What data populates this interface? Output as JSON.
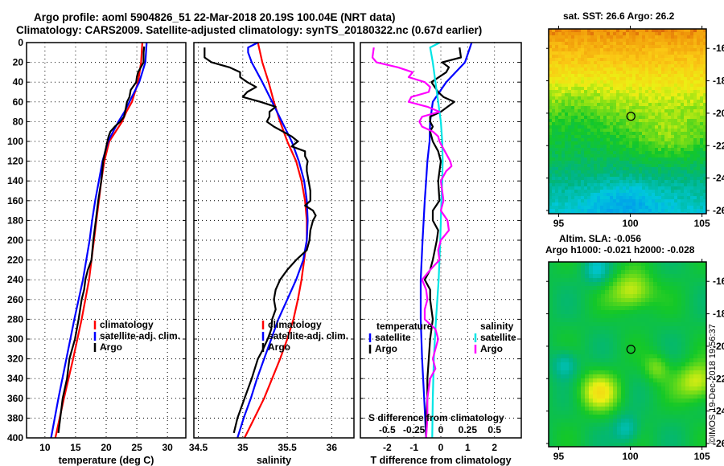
{
  "header": {
    "title_line1": "Argo profile: aoml 5904826_51 22-Mar-2018 20.19S 100.04E (NRT data)",
    "title_line2": "Climatology: CARS2009. Satellite-adjusted climatology: synTS_20180322.nc (0.67d earlier)"
  },
  "colors": {
    "climatology": "#ff0000",
    "satellite": "#0000ff",
    "argo": "#000000",
    "salinity_satellite": "#00e5e5",
    "salinity_argo": "#ff00ff"
  },
  "chart_data": [
    {
      "type": "line",
      "name": "temperature-profile",
      "xlabel": "temperature (deg C)",
      "ylabel": "",
      "xlim": [
        7,
        33
      ],
      "ylim": [
        400,
        0
      ],
      "xticks": [
        "10",
        "15",
        "20",
        "25",
        "30"
      ],
      "xtick_values": [
        10,
        15,
        20,
        25,
        30
      ],
      "yticks": [
        "0",
        "20",
        "40",
        "60",
        "80",
        "100",
        "120",
        "140",
        "160",
        "180",
        "200",
        "220",
        "240",
        "260",
        "280",
        "300",
        "320",
        "340",
        "360",
        "380",
        "400"
      ],
      "grid": true,
      "legend": [
        "climatology",
        "satellite-adj. clim.",
        "Argo"
      ],
      "legend_position": "lower-right",
      "series": [
        {
          "name": "climatology",
          "color_key": "climatology",
          "depth": [
            0,
            20,
            40,
            60,
            70,
            80,
            100,
            120,
            140,
            160,
            180,
            200,
            240,
            280,
            320,
            360,
            400
          ],
          "values": [
            25.9,
            25.7,
            25.2,
            24.2,
            23.3,
            22.6,
            20.5,
            19.7,
            19.2,
            18.8,
            18.4,
            18.0,
            17.2,
            16.0,
            14.6,
            13.1,
            11.7
          ]
        },
        {
          "name": "satellite-adj. clim.",
          "color_key": "satellite",
          "depth": [
            0,
            20,
            40,
            50,
            60,
            70,
            80,
            100,
            120,
            140,
            160,
            180,
            200,
            240,
            280,
            320,
            360,
            400
          ],
          "values": [
            26.6,
            26.4,
            25.4,
            24.6,
            23.8,
            23.0,
            22.0,
            20.3,
            19.4,
            18.8,
            18.2,
            17.7,
            17.3,
            16.2,
            14.8,
            13.5,
            12.2,
            11.0
          ]
        },
        {
          "name": "Argo",
          "color_key": "argo",
          "depth": [
            4,
            10,
            20,
            30,
            35,
            40,
            48,
            55,
            60,
            70,
            75,
            80,
            85,
            90,
            95,
            100,
            120,
            140,
            160,
            180,
            200,
            220,
            230,
            240,
            250,
            260,
            280,
            300,
            320,
            340,
            360,
            380,
            395
          ],
          "values": [
            26.2,
            26.1,
            26.1,
            25.2,
            25.0,
            24.9,
            24.0,
            23.8,
            23.4,
            23.1,
            22.9,
            22.3,
            21.4,
            20.7,
            20.4,
            20.2,
            19.5,
            19.2,
            18.7,
            18.3,
            17.9,
            17.6,
            17.0,
            16.6,
            16.4,
            16.0,
            15.5,
            14.9,
            14.0,
            13.6,
            12.9,
            12.5,
            12.2
          ]
        }
      ]
    },
    {
      "type": "line",
      "name": "salinity-profile",
      "xlabel": "salinity",
      "xlim": [
        34.45,
        36.25
      ],
      "ylim": [
        400,
        0
      ],
      "xticks": [
        "34.5",
        "35",
        "35.5",
        "36"
      ],
      "xtick_values": [
        34.5,
        35.0,
        35.5,
        36.0
      ],
      "grid": true,
      "legend": [
        "climatology",
        "satellite-adj. clim.",
        "Argo"
      ],
      "legend_position": "lower-right",
      "series": [
        {
          "name": "climatology",
          "color_key": "climatology",
          "depth": [
            0,
            20,
            40,
            60,
            80,
            100,
            120,
            140,
            160,
            180,
            200,
            220,
            240,
            260,
            280,
            300,
            320,
            340,
            360,
            380,
            400
          ],
          "values": [
            35.17,
            35.22,
            35.29,
            35.35,
            35.42,
            35.5,
            35.6,
            35.66,
            35.7,
            35.72,
            35.72,
            35.69,
            35.66,
            35.62,
            35.57,
            35.5,
            35.42,
            35.33,
            35.24,
            35.13,
            35.02
          ]
        },
        {
          "name": "satellite-adj. clim.",
          "color_key": "satellite",
          "depth": [
            0,
            5,
            10,
            20,
            40,
            60,
            80,
            100,
            120,
            140,
            160,
            180,
            200,
            220,
            240,
            260,
            280,
            300,
            320,
            340,
            360,
            380,
            400
          ],
          "values": [
            35.17,
            35.06,
            35.06,
            35.1,
            35.22,
            35.33,
            35.44,
            35.55,
            35.63,
            35.69,
            35.72,
            35.73,
            35.72,
            35.68,
            35.6,
            35.5,
            35.4,
            35.32,
            35.24,
            35.16,
            35.09,
            35.01,
            34.94
          ]
        },
        {
          "name": "Argo",
          "color_key": "argo",
          "depth": [
            5,
            15,
            20,
            25,
            30,
            35,
            40,
            45,
            50,
            55,
            60,
            65,
            70,
            75,
            80,
            85,
            90,
            95,
            100,
            105,
            110,
            115,
            120,
            125,
            130,
            140,
            150,
            160,
            165,
            170,
            175,
            180,
            190,
            200,
            210,
            220,
            230,
            240,
            250,
            260,
            270,
            280,
            290,
            300,
            310,
            320,
            340,
            360,
            380,
            395
          ],
          "values": [
            34.57,
            34.57,
            34.65,
            34.85,
            34.97,
            34.97,
            35.05,
            35.15,
            35.05,
            35.0,
            35.2,
            35.37,
            35.3,
            35.3,
            35.27,
            35.35,
            35.45,
            35.55,
            35.62,
            35.55,
            35.7,
            35.7,
            35.73,
            35.72,
            35.72,
            35.74,
            35.76,
            35.76,
            35.7,
            35.79,
            35.82,
            35.79,
            35.76,
            35.75,
            35.72,
            35.6,
            35.5,
            35.42,
            35.37,
            35.35,
            35.37,
            35.33,
            35.32,
            35.28,
            35.23,
            35.17,
            35.1,
            35.02,
            34.94,
            34.9
          ]
        }
      ]
    },
    {
      "type": "line",
      "name": "difference-profile",
      "xlabel": "T difference from climatology",
      "xlim": [
        -3,
        3
      ],
      "ylim": [
        400,
        0
      ],
      "xticks": [
        "-2",
        "-1",
        "0",
        "1",
        "2"
      ],
      "xtick_values": [
        -2,
        -1,
        0,
        1,
        2
      ],
      "secondary_xlabel": "S difference from climatology",
      "secondary_xticks": [
        "-0.5",
        "-0.25",
        "0",
        "0.25",
        "0.5"
      ],
      "secondary_xtick_values": [
        -0.5,
        -0.25,
        0,
        0.25,
        0.5
      ],
      "grid": true,
      "legend_groups": [
        {
          "title": "temperature",
          "items": [
            "satellite",
            "Argo"
          ]
        },
        {
          "title": "salinity",
          "items": [
            "satellite",
            "Argo"
          ]
        }
      ],
      "legend_position": "lower",
      "series": [
        {
          "name": "temperature satellite",
          "color_key": "satellite",
          "depth": [
            0,
            20,
            40,
            60,
            80,
            100,
            120,
            140,
            160,
            200,
            240,
            280,
            320,
            360,
            400
          ],
          "values": [
            1.15,
            0.9,
            0.2,
            -0.3,
            -0.4,
            -0.42,
            -0.5,
            -0.55,
            -0.6,
            -0.68,
            -0.75,
            -0.75,
            -0.7,
            -0.62,
            -0.55
          ]
        },
        {
          "name": "temperature Argo",
          "color_key": "argo",
          "depth": [
            5,
            15,
            20,
            25,
            30,
            40,
            50,
            55,
            60,
            70,
            75,
            80,
            85,
            90,
            100,
            110,
            120,
            140,
            160,
            170,
            180,
            190,
            200,
            220,
            230,
            240,
            250,
            260,
            280,
            300,
            320,
            340,
            360,
            380,
            400
          ],
          "values": [
            0.7,
            0.75,
            0.05,
            0.3,
            0.2,
            -0.35,
            -0.1,
            0.1,
            0.5,
            0.0,
            -0.4,
            -0.4,
            -0.3,
            -0.4,
            -0.3,
            -0.1,
            0.0,
            -0.1,
            -0.05,
            -0.3,
            -0.3,
            -0.1,
            -0.15,
            -0.3,
            -0.4,
            -0.6,
            -0.4,
            -0.4,
            -0.3,
            -0.4,
            -0.45,
            -0.5,
            -0.5,
            -0.55,
            -0.55
          ]
        },
        {
          "name": "salinity satellite",
          "color_key": "salinity_satellite",
          "depth": [
            0,
            5,
            20,
            40,
            60,
            80,
            100,
            120,
            140,
            160,
            200,
            240,
            280,
            320,
            360,
            400
          ],
          "values": [
            -0.04,
            -0.4,
            -0.3,
            -0.2,
            -0.1,
            0.0,
            0.05,
            0.07,
            0.05,
            0.02,
            -0.02,
            -0.08,
            -0.18,
            -0.26,
            -0.3,
            -0.32
          ]
        },
        {
          "name": "salinity Argo",
          "color_key": "salinity_argo",
          "depth": [
            5,
            15,
            20,
            25,
            30,
            35,
            40,
            45,
            50,
            55,
            60,
            65,
            70,
            75,
            80,
            85,
            90,
            95,
            100,
            110,
            120,
            125,
            130,
            140,
            150,
            160,
            170,
            180,
            190,
            200,
            210,
            220,
            230,
            240,
            250,
            260,
            270,
            280,
            290,
            300,
            310,
            320,
            330,
            340,
            360,
            380,
            400
          ],
          "values": [
            -2.5,
            -2.55,
            -2.4,
            -1.6,
            -1.05,
            -1.2,
            -0.6,
            -0.4,
            -0.45,
            -1.1,
            -1.2,
            -0.5,
            -0.05,
            -0.7,
            -0.8,
            -0.7,
            -0.3,
            -0.1,
            -0.05,
            0.15,
            0.35,
            0.4,
            0.2,
            0.0,
            0.05,
            0.1,
            0.0,
            0.25,
            0.3,
            0.0,
            -0.1,
            -0.05,
            -0.4,
            -0.7,
            -0.55,
            -0.5,
            -0.6,
            -0.6,
            -0.2,
            -0.1,
            -0.2,
            -0.3,
            -0.2,
            -0.4,
            -0.5,
            -0.5,
            -0.55
          ]
        }
      ]
    },
    {
      "type": "heatmap",
      "name": "sst-map",
      "title": "sat. SST: 26.6 Argo: 26.2",
      "xlim": [
        94.3,
        105.3
      ],
      "ylim": [
        -26.2,
        -14.8
      ],
      "xticks": [
        "95",
        "100",
        "105"
      ],
      "xtick_values": [
        95,
        100,
        105
      ],
      "yticks": [
        "-16",
        "-18",
        "-20",
        "-22",
        "-24",
        "-26"
      ],
      "ytick_values": [
        -16,
        -18,
        -20,
        -22,
        -24,
        -26
      ],
      "marker": {
        "lon": 100.04,
        "lat": -20.19
      },
      "description": "warm (orange) in north, yellow band, green near -20, cyan/blue to the south"
    },
    {
      "type": "heatmap",
      "name": "sla-map",
      "title_line1": "Altim. SLA: -0.056",
      "title_line2": "Argo h1000: -0.021 h2000: -0.028",
      "xlim": [
        94.3,
        105.3
      ],
      "ylim": [
        -26.2,
        -14.8
      ],
      "xticks": [
        "95",
        "100",
        "105"
      ],
      "xtick_values": [
        95,
        100,
        105
      ],
      "yticks": [
        "-16",
        "-18",
        "-20",
        "-22",
        "-24",
        "-26"
      ],
      "ytick_values": [
        -16,
        -18,
        -20,
        -22,
        -24,
        -26
      ],
      "marker": {
        "lon": 100.04,
        "lat": -20.19
      },
      "blobs": [
        {
          "lon": 100.0,
          "lat": -16.5,
          "kind": "high"
        },
        {
          "lon": 97.7,
          "lat": -22.7,
          "kind": "high"
        },
        {
          "lon": 104.6,
          "lat": -22.1,
          "kind": "high"
        },
        {
          "lon": 101.7,
          "lat": -21.2,
          "kind": "mid"
        },
        {
          "lon": 99.6,
          "lat": -25.0,
          "kind": "low"
        },
        {
          "lon": 97.5,
          "lat": -15.2,
          "kind": "low"
        },
        {
          "lon": 95.3,
          "lat": -21.0,
          "kind": "low"
        }
      ]
    }
  ],
  "footer": {
    "copyright": "©IMOS 19-Dec-2018 19:56:37"
  }
}
